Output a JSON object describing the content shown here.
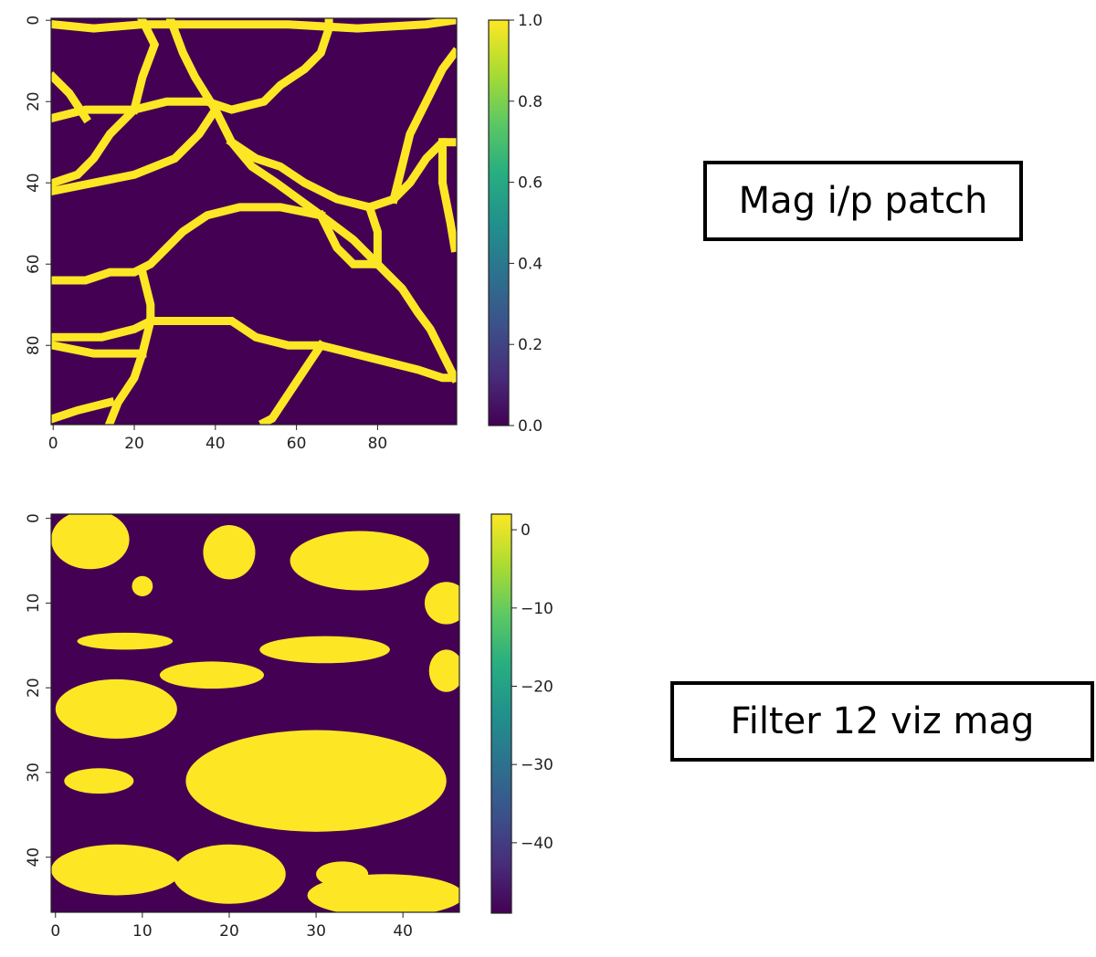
{
  "chart_data": [
    {
      "type": "heatmap",
      "title": "",
      "xlabel": "",
      "ylabel": "",
      "xlim": [
        -0.5,
        99.5
      ],
      "ylim": [
        99.5,
        -0.5
      ],
      "xticks": [
        0,
        20,
        40,
        60,
        80
      ],
      "yticks": [
        0,
        20,
        40,
        60,
        80
      ],
      "colorbar": {
        "min": 0.0,
        "max": 1.0,
        "ticks": [
          "0.0",
          "0.2",
          "0.4",
          "0.6",
          "0.8",
          "1.0"
        ],
        "colormap": "viridis"
      },
      "description_values": "binary crack-network mask: thin boundary lines (value 1.0) separating regions (value 0.0)",
      "paths": [
        [
          [
            0,
            1
          ],
          [
            10,
            2
          ],
          [
            22,
            1
          ],
          [
            40,
            1
          ],
          [
            58,
            1
          ],
          [
            75,
            2
          ],
          [
            92,
            1
          ],
          [
            99,
            0
          ]
        ],
        [
          [
            22,
            0
          ],
          [
            25,
            6
          ],
          [
            22,
            14
          ],
          [
            20,
            22
          ]
        ],
        [
          [
            29,
            0
          ],
          [
            32,
            8
          ],
          [
            35,
            14
          ],
          [
            40,
            22
          ],
          [
            44,
            30
          ],
          [
            49,
            36
          ],
          [
            55,
            40
          ],
          [
            66,
            48
          ],
          [
            74,
            54
          ],
          [
            80,
            60
          ],
          [
            86,
            66
          ],
          [
            90,
            72
          ],
          [
            93,
            76
          ],
          [
            96,
            82
          ],
          [
            99,
            88
          ]
        ],
        [
          [
            0,
            24
          ],
          [
            8,
            22
          ],
          [
            20,
            22
          ],
          [
            28,
            20
          ],
          [
            38,
            20
          ],
          [
            44,
            22
          ],
          [
            52,
            20
          ],
          [
            56,
            16
          ],
          [
            62,
            12
          ],
          [
            66,
            8
          ],
          [
            68,
            2
          ],
          [
            68,
            0
          ]
        ],
        [
          [
            20,
            22
          ],
          [
            14,
            28
          ],
          [
            10,
            34
          ],
          [
            6,
            38
          ],
          [
            0,
            40
          ]
        ],
        [
          [
            40,
            22
          ],
          [
            36,
            28
          ],
          [
            30,
            34
          ],
          [
            20,
            38
          ],
          [
            10,
            40
          ],
          [
            0,
            42
          ]
        ],
        [
          [
            44,
            30
          ],
          [
            50,
            34
          ],
          [
            56,
            36
          ],
          [
            62,
            40
          ],
          [
            70,
            44
          ],
          [
            78,
            46
          ],
          [
            84,
            44
          ],
          [
            88,
            40
          ],
          [
            92,
            34
          ],
          [
            96,
            30
          ],
          [
            99,
            30
          ]
        ],
        [
          [
            84,
            44
          ],
          [
            86,
            36
          ],
          [
            88,
            28
          ],
          [
            92,
            20
          ],
          [
            96,
            12
          ],
          [
            99,
            8
          ]
        ],
        [
          [
            66,
            48
          ],
          [
            56,
            46
          ],
          [
            46,
            46
          ],
          [
            38,
            48
          ],
          [
            32,
            52
          ],
          [
            28,
            56
          ],
          [
            24,
            60
          ],
          [
            20,
            62
          ],
          [
            14,
            62
          ],
          [
            8,
            64
          ],
          [
            0,
            64
          ]
        ],
        [
          [
            22,
            62
          ],
          [
            24,
            70
          ],
          [
            24,
            74
          ],
          [
            20,
            76
          ],
          [
            12,
            78
          ],
          [
            0,
            78
          ]
        ],
        [
          [
            24,
            74
          ],
          [
            34,
            74
          ],
          [
            44,
            74
          ],
          [
            50,
            78
          ],
          [
            58,
            80
          ],
          [
            66,
            80
          ],
          [
            74,
            82
          ],
          [
            82,
            84
          ],
          [
            90,
            86
          ],
          [
            96,
            88
          ],
          [
            99,
            88
          ]
        ],
        [
          [
            66,
            80
          ],
          [
            62,
            86
          ],
          [
            58,
            92
          ],
          [
            54,
            98
          ],
          [
            52,
            99
          ]
        ],
        [
          [
            24,
            74
          ],
          [
            22,
            82
          ],
          [
            20,
            88
          ],
          [
            16,
            94
          ],
          [
            14,
            99
          ]
        ],
        [
          [
            0,
            80
          ],
          [
            10,
            82
          ],
          [
            16,
            82
          ],
          [
            22,
            82
          ]
        ],
        [
          [
            0,
            98
          ],
          [
            6,
            96
          ],
          [
            14,
            94
          ]
        ],
        [
          [
            80,
            60
          ],
          [
            80,
            52
          ],
          [
            78,
            46
          ]
        ],
        [
          [
            66,
            48
          ],
          [
            70,
            56
          ],
          [
            74,
            60
          ],
          [
            80,
            60
          ]
        ],
        [
          [
            0,
            14
          ],
          [
            4,
            18
          ],
          [
            8,
            24
          ]
        ],
        [
          [
            96,
            30
          ],
          [
            96,
            40
          ],
          [
            98,
            50
          ],
          [
            99,
            56
          ]
        ]
      ]
    },
    {
      "type": "heatmap",
      "title": "",
      "xlabel": "",
      "ylabel": "",
      "xlim": [
        -0.5,
        46.5
      ],
      "ylim": [
        46.5,
        -0.5
      ],
      "xticks": [
        0,
        10,
        20,
        30,
        40
      ],
      "yticks": [
        0,
        10,
        20,
        30,
        40
      ],
      "colorbar": {
        "min": -49,
        "max": 2,
        "ticks": [
          "−40",
          "−30",
          "−20",
          "−10",
          "0"
        ],
        "tick_values": [
          -40,
          -30,
          -20,
          -10,
          0
        ],
        "colormap": "viridis"
      },
      "description_values": "filter activation map: blob regions near 0 (yellow) on a background near -49 (dark purple)",
      "blobs": [
        {
          "cx": 4,
          "cy": 2.5,
          "rx": 4.5,
          "ry": 3.5
        },
        {
          "cx": 10,
          "cy": 8,
          "rx": 1.2,
          "ry": 1.2
        },
        {
          "cx": 20,
          "cy": 4,
          "rx": 3,
          "ry": 3.2
        },
        {
          "cx": 35,
          "cy": 5,
          "rx": 8,
          "ry": 3.5
        },
        {
          "cx": 45,
          "cy": 10,
          "rx": 2.5,
          "ry": 2.5
        },
        {
          "cx": 8,
          "cy": 14.5,
          "rx": 5.5,
          "ry": 1
        },
        {
          "cx": 31,
          "cy": 15.5,
          "rx": 7.5,
          "ry": 1.6
        },
        {
          "cx": 45,
          "cy": 18,
          "rx": 2,
          "ry": 2.5
        },
        {
          "cx": 7,
          "cy": 22.5,
          "rx": 7,
          "ry": 3.5
        },
        {
          "cx": 18,
          "cy": 18.5,
          "rx": 6,
          "ry": 1.6
        },
        {
          "cx": 30,
          "cy": 31,
          "rx": 15,
          "ry": 6
        },
        {
          "cx": 5,
          "cy": 31,
          "rx": 4,
          "ry": 1.5
        },
        {
          "cx": 7,
          "cy": 41.5,
          "rx": 7.5,
          "ry": 3
        },
        {
          "cx": 20,
          "cy": 42,
          "rx": 6.5,
          "ry": 3.5
        },
        {
          "cx": 38,
          "cy": 44.5,
          "rx": 9,
          "ry": 2.5
        },
        {
          "cx": 33,
          "cy": 42,
          "rx": 3,
          "ry": 1.5
        }
      ]
    }
  ],
  "callouts": {
    "top": "Mag i/p patch",
    "bottom": "Filter 12 viz mag"
  },
  "colors": {
    "yellow": "#fde725",
    "purple": "#440154"
  }
}
